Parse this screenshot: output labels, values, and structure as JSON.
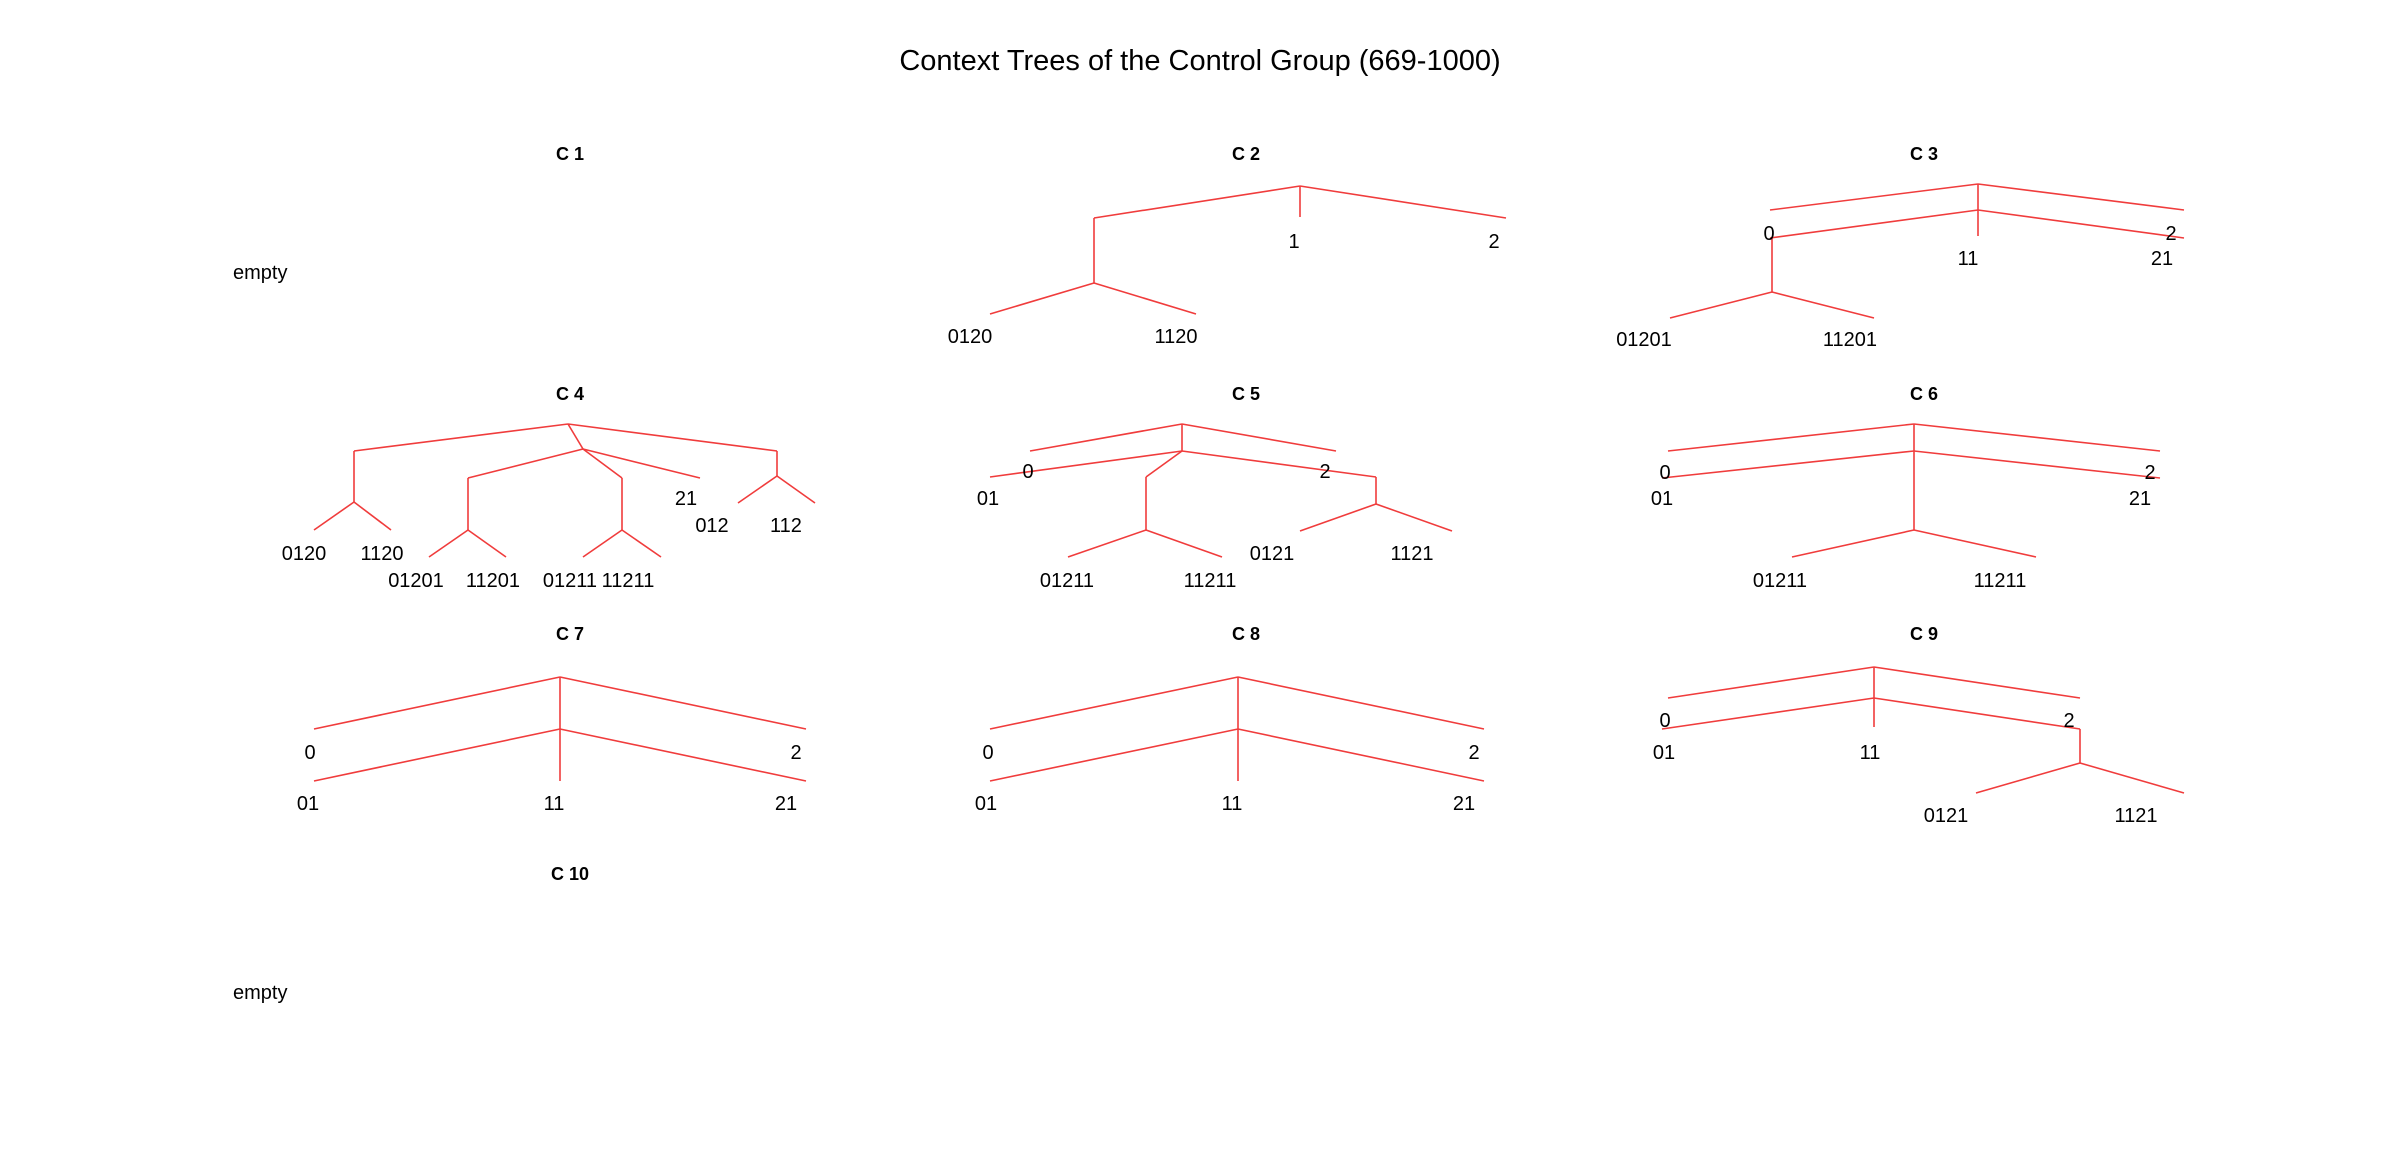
{
  "title": "Context Trees of the Control Group (669-1000)",
  "colors": {
    "edge": "#f03c3c",
    "text": "#000000",
    "background": "#ffffff"
  },
  "empty_label": "empty",
  "panels": [
    {
      "title": "C 1",
      "empty": true,
      "labels": []
    },
    {
      "title": "C 2",
      "empty": false,
      "labels": [
        "1",
        "2",
        "0120",
        "1120"
      ]
    },
    {
      "title": "C 3",
      "empty": false,
      "labels": [
        "0",
        "2",
        "11",
        "21",
        "01201",
        "11201"
      ]
    },
    {
      "title": "C 4",
      "empty": false,
      "labels": [
        "21",
        "012",
        "112",
        "0120",
        "1120",
        "01201",
        "11201",
        "01211",
        "11211"
      ]
    },
    {
      "title": "C 5",
      "empty": false,
      "labels": [
        "0",
        "2",
        "01",
        "0121",
        "1121",
        "01211",
        "11211"
      ]
    },
    {
      "title": "C 6",
      "empty": false,
      "labels": [
        "0",
        "2",
        "01",
        "21",
        "01211",
        "11211"
      ]
    },
    {
      "title": "C 7",
      "empty": false,
      "labels": [
        "0",
        "2",
        "01",
        "11",
        "21"
      ]
    },
    {
      "title": "C 8",
      "empty": false,
      "labels": [
        "0",
        "2",
        "01",
        "11",
        "21"
      ]
    },
    {
      "title": "C 9",
      "empty": false,
      "labels": [
        "0",
        "2",
        "01",
        "11",
        "0121",
        "1121"
      ]
    },
    {
      "title": "C 10",
      "empty": true,
      "labels": []
    }
  ]
}
